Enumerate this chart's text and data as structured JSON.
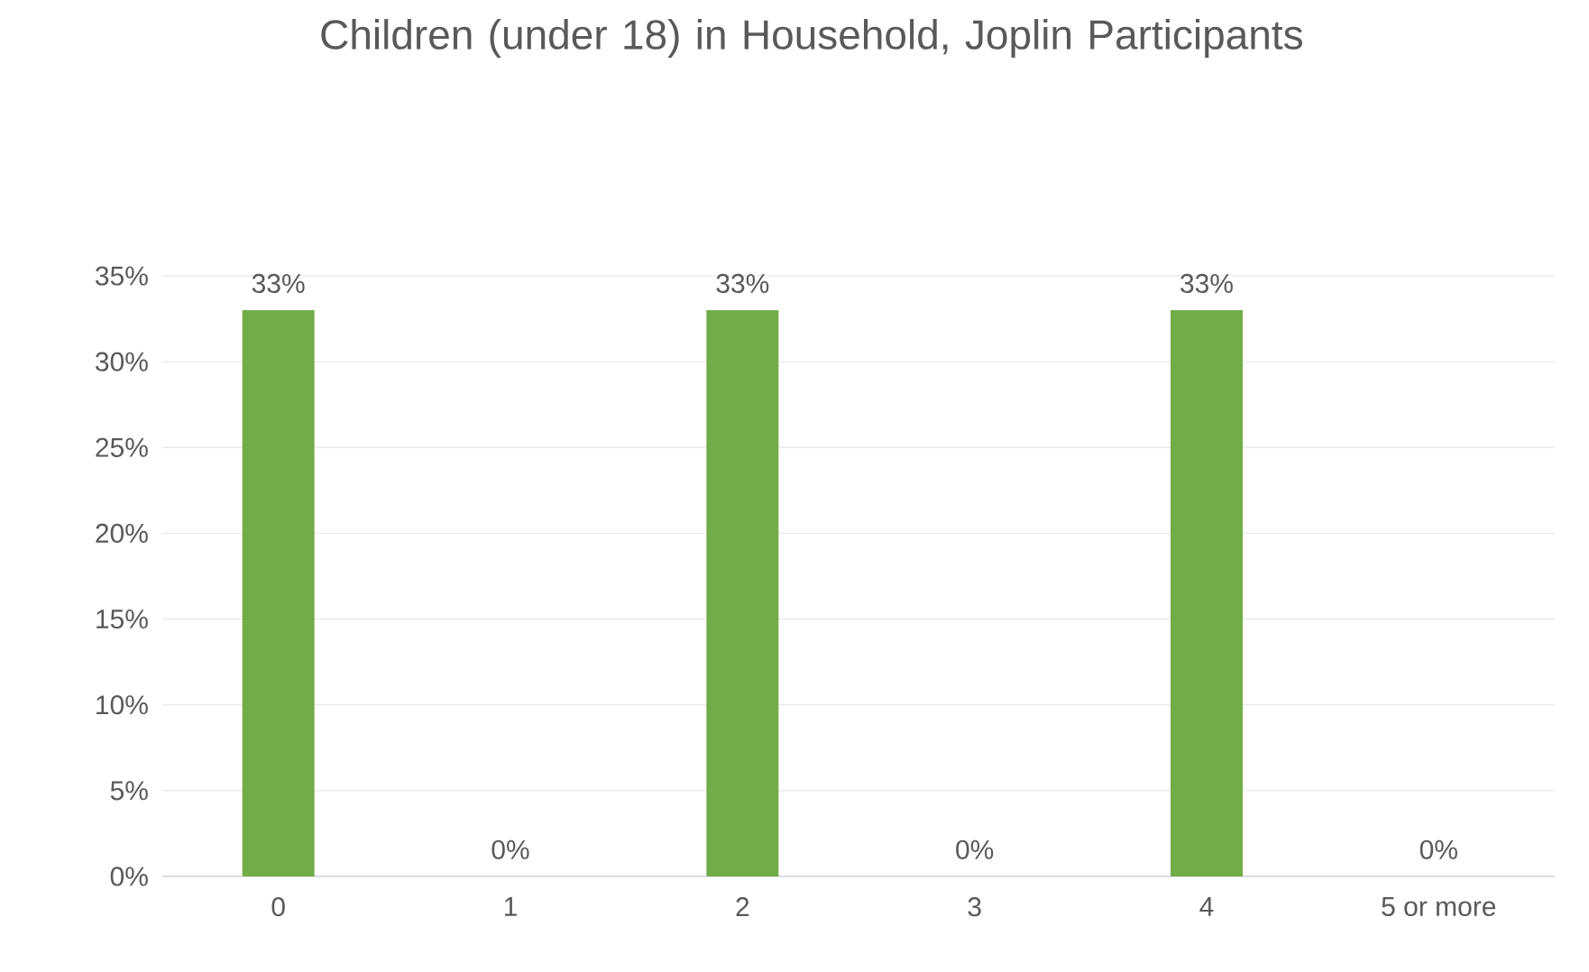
{
  "chart_data": {
    "type": "bar",
    "title": "Children (under 18) in Household, Joplin Participants",
    "categories": [
      "0",
      "1",
      "2",
      "3",
      "4",
      "5 or more"
    ],
    "values": [
      33,
      0,
      33,
      0,
      33,
      0
    ],
    "value_labels": [
      "33%",
      "0%",
      "33%",
      "0%",
      "33%",
      "0%"
    ],
    "color": "#70ad47",
    "ylim": [
      0,
      35
    ],
    "yticks": [
      {
        "value": 0,
        "label": "0%"
      },
      {
        "value": 5,
        "label": "5%"
      },
      {
        "value": 10,
        "label": "10%"
      },
      {
        "value": 15,
        "label": "15%"
      },
      {
        "value": 20,
        "label": "20%"
      },
      {
        "value": 25,
        "label": "25%"
      },
      {
        "value": 30,
        "label": "30%"
      },
      {
        "value": 35,
        "label": "35%"
      }
    ],
    "grid": "y"
  }
}
